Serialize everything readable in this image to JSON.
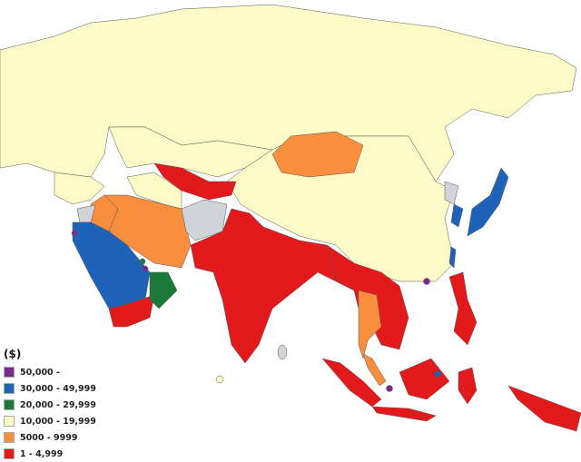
{
  "legend": {
    "title": "($)",
    "items": [
      {
        "label": "50,000 -",
        "color": "#7b2a8e"
      },
      {
        "label": "30,000 - 49,999",
        "color": "#1f63b8"
      },
      {
        "label": "20,000 - 29,999",
        "color": "#1b7a3a"
      },
      {
        "label": "10,000 - 19,999",
        "color": "#fffbc8"
      },
      {
        "label": "5000 - 9999",
        "color": "#f98e3e"
      },
      {
        "label": "1 - 4,999",
        "color": "#e31a1c"
      }
    ],
    "no_data_color": "#d0d4d8"
  }
}
